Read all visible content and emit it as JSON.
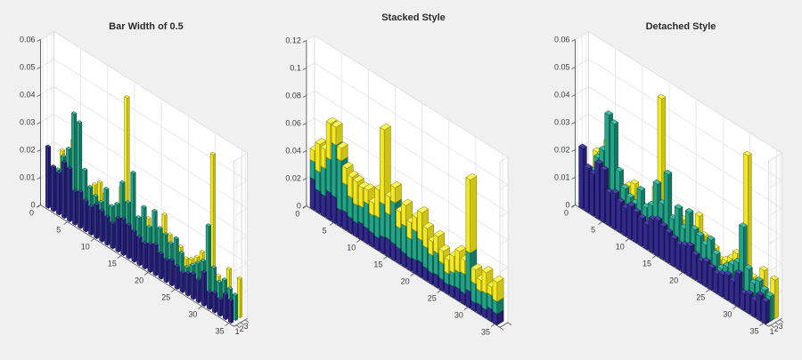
{
  "figure": {
    "background": "#f0f0f0",
    "wall_color": "#ffffff",
    "grid_color": "#e2e2e2",
    "axis_color": "#5a5a5a",
    "wall_edge_color": "#d2d2d2",
    "label_color": "#3c3c3c"
  },
  "charts": [
    {
      "title": "Bar Width of 0.5",
      "style": "grouped",
      "bar_width": 0.5,
      "zmax": 0.06,
      "z_ticks": [
        "0",
        "0.01",
        "0.02",
        "0.03",
        "0.04",
        "0.05",
        "0.06"
      ],
      "x_ticks": [
        0,
        5,
        10,
        15,
        20,
        25,
        30,
        35
      ],
      "series_ticks": [
        "1",
        "2",
        "3"
      ]
    },
    {
      "title": "Stacked Style",
      "style": "stacked",
      "bar_width": 0.8,
      "zmax": 0.12,
      "z_ticks": [
        "0",
        "0.02",
        "0.04",
        "0.06",
        "0.08",
        "0.1",
        "0.12"
      ],
      "x_ticks": [
        0,
        5,
        10,
        15,
        20,
        25,
        30,
        35
      ],
      "series_ticks": []
    },
    {
      "title": "Detached Style",
      "style": "detached",
      "bar_width": 0.8,
      "zmax": 0.06,
      "z_ticks": [
        "0",
        "0.01",
        "0.02",
        "0.03",
        "0.04",
        "0.05",
        "0.06"
      ],
      "x_ticks": [
        0,
        5,
        10,
        15,
        20,
        25,
        30,
        35
      ],
      "series_ticks": [
        "1",
        "2",
        "3"
      ]
    }
  ],
  "chart_data": {
    "type": "bar",
    "subtype": "bar3",
    "categories": [
      1,
      2,
      3,
      4,
      5,
      6,
      7,
      8,
      9,
      10,
      11,
      12,
      13,
      14,
      15,
      16,
      17,
      18,
      19,
      20,
      21,
      22,
      23,
      24,
      25,
      26,
      27,
      28,
      29,
      30,
      31,
      32,
      33,
      34,
      35
    ],
    "x_range": [
      0,
      36
    ],
    "series_axis_values": [
      1,
      2,
      3
    ],
    "grid": true,
    "legend": false,
    "series": [
      {
        "name": "series-1-blue",
        "color_front": "#322b8d",
        "color_top": "#4a41a8",
        "color_side": "#221d66",
        "color_edge": "#131040",
        "values": [
          0.022,
          0.016,
          0.015,
          0.02,
          0.019,
          0.012,
          0.013,
          0.011,
          0.01,
          0.012,
          0.011,
          0.01,
          0.009,
          0.012,
          0.013,
          0.012,
          0.011,
          0.01,
          0.009,
          0.01,
          0.011,
          0.009,
          0.008,
          0.009,
          0.008,
          0.007,
          0.008,
          0.009,
          0.008,
          0.012,
          0.006,
          0.007,
          0.006,
          0.009,
          0.008
        ]
      },
      {
        "name": "series-2-teal",
        "color_front": "#23a388",
        "color_top": "#41bfa5",
        "color_side": "#167660",
        "color_edge": "#0a4a3c",
        "values": [
          0.013,
          0.014,
          0.02,
          0.024,
          0.038,
          0.036,
          0.02,
          0.015,
          0.013,
          0.012,
          0.018,
          0.013,
          0.015,
          0.024,
          0.018,
          0.03,
          0.015,
          0.02,
          0.014,
          0.021,
          0.016,
          0.015,
          0.013,
          0.016,
          0.012,
          0.008,
          0.01,
          0.012,
          0.014,
          0.028,
          0.014,
          0.01,
          0.012,
          0.01,
          0.009
        ]
      },
      {
        "name": "series-3-yellow",
        "color_front": "#f3e824",
        "color_top": "#f9f35c",
        "color_side": "#cdc216",
        "color_edge": "#807805",
        "values": [
          0.008,
          0.02,
          0.014,
          0.026,
          0.013,
          0.009,
          0.012,
          0.015,
          0.017,
          0.014,
          0.01,
          0.009,
          0.02,
          0.054,
          0.013,
          0.011,
          0.012,
          0.015,
          0.012,
          0.01,
          0.02,
          0.014,
          0.01,
          0.012,
          0.009,
          0.01,
          0.012,
          0.015,
          0.01,
          0.053,
          0.01,
          0.008,
          0.015,
          0.006,
          0.014
        ]
      }
    ]
  }
}
